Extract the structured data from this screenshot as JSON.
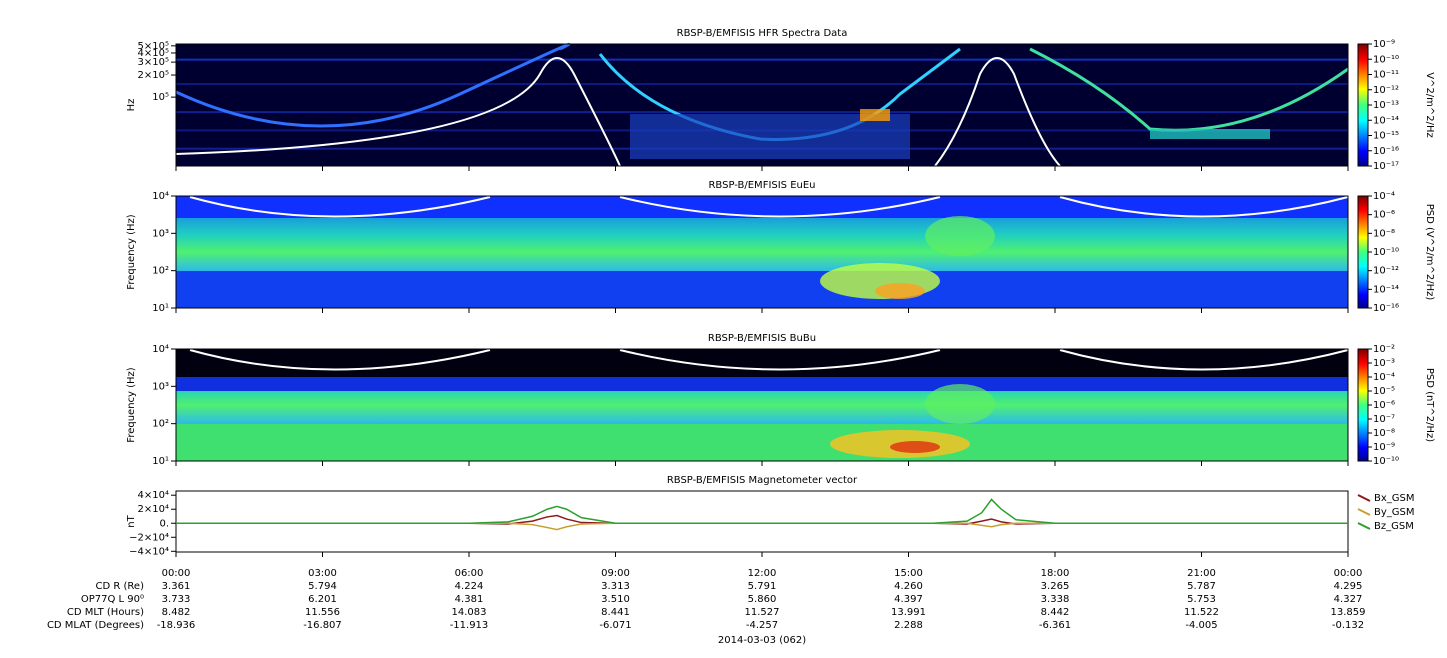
{
  "chart_data": [
    {
      "type": "spectrogram",
      "title": "RBSP-B/EMFISIS  HFR Spectra Data",
      "y_label": "Hz",
      "ylog": true,
      "ylim": [
        11500,
        530000
      ],
      "yticks": [
        {
          "value": 500000,
          "label": "5×10⁵"
        },
        {
          "value": 400000,
          "label": "4×10⁵"
        },
        {
          "value": 300000,
          "label": "3×10⁵"
        },
        {
          "value": 200000,
          "label": "2×10⁵"
        },
        {
          "value": 100000,
          "label": "10⁵"
        }
      ],
      "colorbar": {
        "label": "V^2/m^2/Hz",
        "log": true,
        "lim": [
          1e-17,
          1e-09
        ],
        "ticks": [
          {
            "value": 1e-09,
            "label": "10⁻⁹"
          },
          {
            "value": 1e-10,
            "label": "10⁻¹⁰"
          },
          {
            "value": 1e-11,
            "label": "10⁻¹¹"
          },
          {
            "value": 1e-12,
            "label": "10⁻¹²"
          },
          {
            "value": 1e-13,
            "label": "10⁻¹³"
          },
          {
            "value": 1e-14,
            "label": "10⁻¹⁴"
          },
          {
            "value": 1e-15,
            "label": "10⁻¹⁵"
          },
          {
            "value": 1e-16,
            "label": "10⁻¹⁶"
          },
          {
            "value": 1e-17,
            "label": "10⁻¹⁷"
          }
        ]
      }
    },
    {
      "type": "spectrogram",
      "title": "RBSP-B/EMFISIS  EuEu",
      "y_label": "Frequency (Hz)",
      "ylog": true,
      "ylim": [
        10,
        10000
      ],
      "yticks": [
        {
          "value": 10000,
          "label": "10⁴"
        },
        {
          "value": 1000,
          "label": "10³"
        },
        {
          "value": 100,
          "label": "10²"
        },
        {
          "value": 10,
          "label": "10¹"
        }
      ],
      "colorbar": {
        "label": "PSD (V^2/m^2/Hz)",
        "log": true,
        "lim": [
          1e-16,
          0.0001
        ],
        "ticks": [
          {
            "value": 0.0001,
            "label": "10⁻⁴"
          },
          {
            "value": 1e-06,
            "label": "10⁻⁶"
          },
          {
            "value": 1e-08,
            "label": "10⁻⁸"
          },
          {
            "value": 1e-10,
            "label": "10⁻¹⁰"
          },
          {
            "value": 1e-12,
            "label": "10⁻¹²"
          },
          {
            "value": 1e-14,
            "label": "10⁻¹⁴"
          },
          {
            "value": 1e-16,
            "label": "10⁻¹⁶"
          }
        ]
      }
    },
    {
      "type": "spectrogram",
      "title": "RBSP-B/EMFISIS  BuBu",
      "y_label": "Frequency (Hz)",
      "ylog": true,
      "ylim": [
        10,
        10000
      ],
      "yticks": [
        {
          "value": 10000,
          "label": "10⁴"
        },
        {
          "value": 1000,
          "label": "10³"
        },
        {
          "value": 100,
          "label": "10²"
        },
        {
          "value": 10,
          "label": "10¹"
        }
      ],
      "colorbar": {
        "label": "PSD (nT^2/Hz)",
        "log": true,
        "lim": [
          1e-10,
          0.01
        ],
        "ticks": [
          {
            "value": 0.01,
            "label": "10⁻²"
          },
          {
            "value": 0.001,
            "label": "10⁻³"
          },
          {
            "value": 0.0001,
            "label": "10⁻⁴"
          },
          {
            "value": 1e-05,
            "label": "10⁻⁵"
          },
          {
            "value": 1e-06,
            "label": "10⁻⁶"
          },
          {
            "value": 1e-07,
            "label": "10⁻⁷"
          },
          {
            "value": 1e-08,
            "label": "10⁻⁸"
          },
          {
            "value": 1e-09,
            "label": "10⁻⁹"
          },
          {
            "value": 1e-10,
            "label": "10⁻¹⁰"
          }
        ]
      }
    },
    {
      "type": "line",
      "title": "RBSP-B/EMFISIS  Magnetometer vector",
      "y_label": "nT",
      "x": [
        0,
        6,
        6.8,
        7.3,
        7.6,
        7.8,
        8.0,
        8.3,
        9,
        15.5,
        16.2,
        16.5,
        16.7,
        16.9,
        17.2,
        18,
        24
      ],
      "series": [
        {
          "name": "Bx_GSM",
          "color": "#8b1a1a",
          "values": [
            0,
            0,
            -1000,
            3000,
            9000,
            11000,
            6000,
            1000,
            0,
            0,
            -1000,
            3000,
            6000,
            2000,
            -1000,
            0,
            0
          ]
        },
        {
          "name": "By_GSM",
          "color": "#c8a030",
          "values": [
            0,
            0,
            0,
            -2000,
            -6000,
            -9000,
            -5000,
            -1000,
            0,
            0,
            0,
            -3000,
            -5000,
            -2000,
            0,
            0,
            0
          ]
        },
        {
          "name": "Bz_GSM",
          "color": "#2ca02c",
          "values": [
            0,
            0,
            2000,
            10000,
            20000,
            24000,
            20000,
            8000,
            0,
            0,
            3000,
            15000,
            34000,
            20000,
            5000,
            0,
            0
          ]
        }
      ],
      "ylim": [
        -41000,
        46000
      ],
      "yticks": [
        {
          "value": 40000,
          "label": "4×10⁴"
        },
        {
          "value": 20000,
          "label": "2×10⁴"
        },
        {
          "value": 0,
          "label": "0."
        },
        {
          "value": -20000,
          "label": "−2×10⁴"
        },
        {
          "value": -40000,
          "label": "−4×10⁴"
        }
      ],
      "xlim": [
        0,
        24
      ],
      "xticks": [
        {
          "value": 0,
          "label": "00:00"
        },
        {
          "value": 3,
          "label": "03:00"
        },
        {
          "value": 6,
          "label": "06:00"
        },
        {
          "value": 9,
          "label": "09:00"
        },
        {
          "value": 12,
          "label": "12:00"
        },
        {
          "value": 15,
          "label": "15:00"
        },
        {
          "value": 18,
          "label": "18:00"
        },
        {
          "value": 21,
          "label": "21:00"
        },
        {
          "value": 24,
          "label": "00:00"
        }
      ],
      "date": "2014-03-03 (062)"
    }
  ],
  "ephemeris": {
    "rows": [
      {
        "label": "CD R (Re)",
        "values": [
          "3.361",
          "5.794",
          "4.224",
          "3.313",
          "5.791",
          "4.260",
          "3.265",
          "5.787",
          "4.295"
        ]
      },
      {
        "label": "OP77Q L 90⁰",
        "values": [
          "3.733",
          "6.201",
          "4.381",
          "3.510",
          "5.860",
          "4.397",
          "3.338",
          "5.753",
          "4.327"
        ]
      },
      {
        "label": "CD MLT (Hours)",
        "values": [
          "8.482",
          "11.556",
          "14.083",
          "8.441",
          "11.527",
          "13.991",
          "8.442",
          "11.522",
          "13.859"
        ]
      },
      {
        "label": "CD MLAT (Degrees)",
        "values": [
          "-18.936",
          "-16.807",
          "-11.913",
          "-6.071",
          "-4.257",
          "2.288",
          "-6.361",
          "-4.005",
          "-0.132"
        ]
      }
    ]
  }
}
